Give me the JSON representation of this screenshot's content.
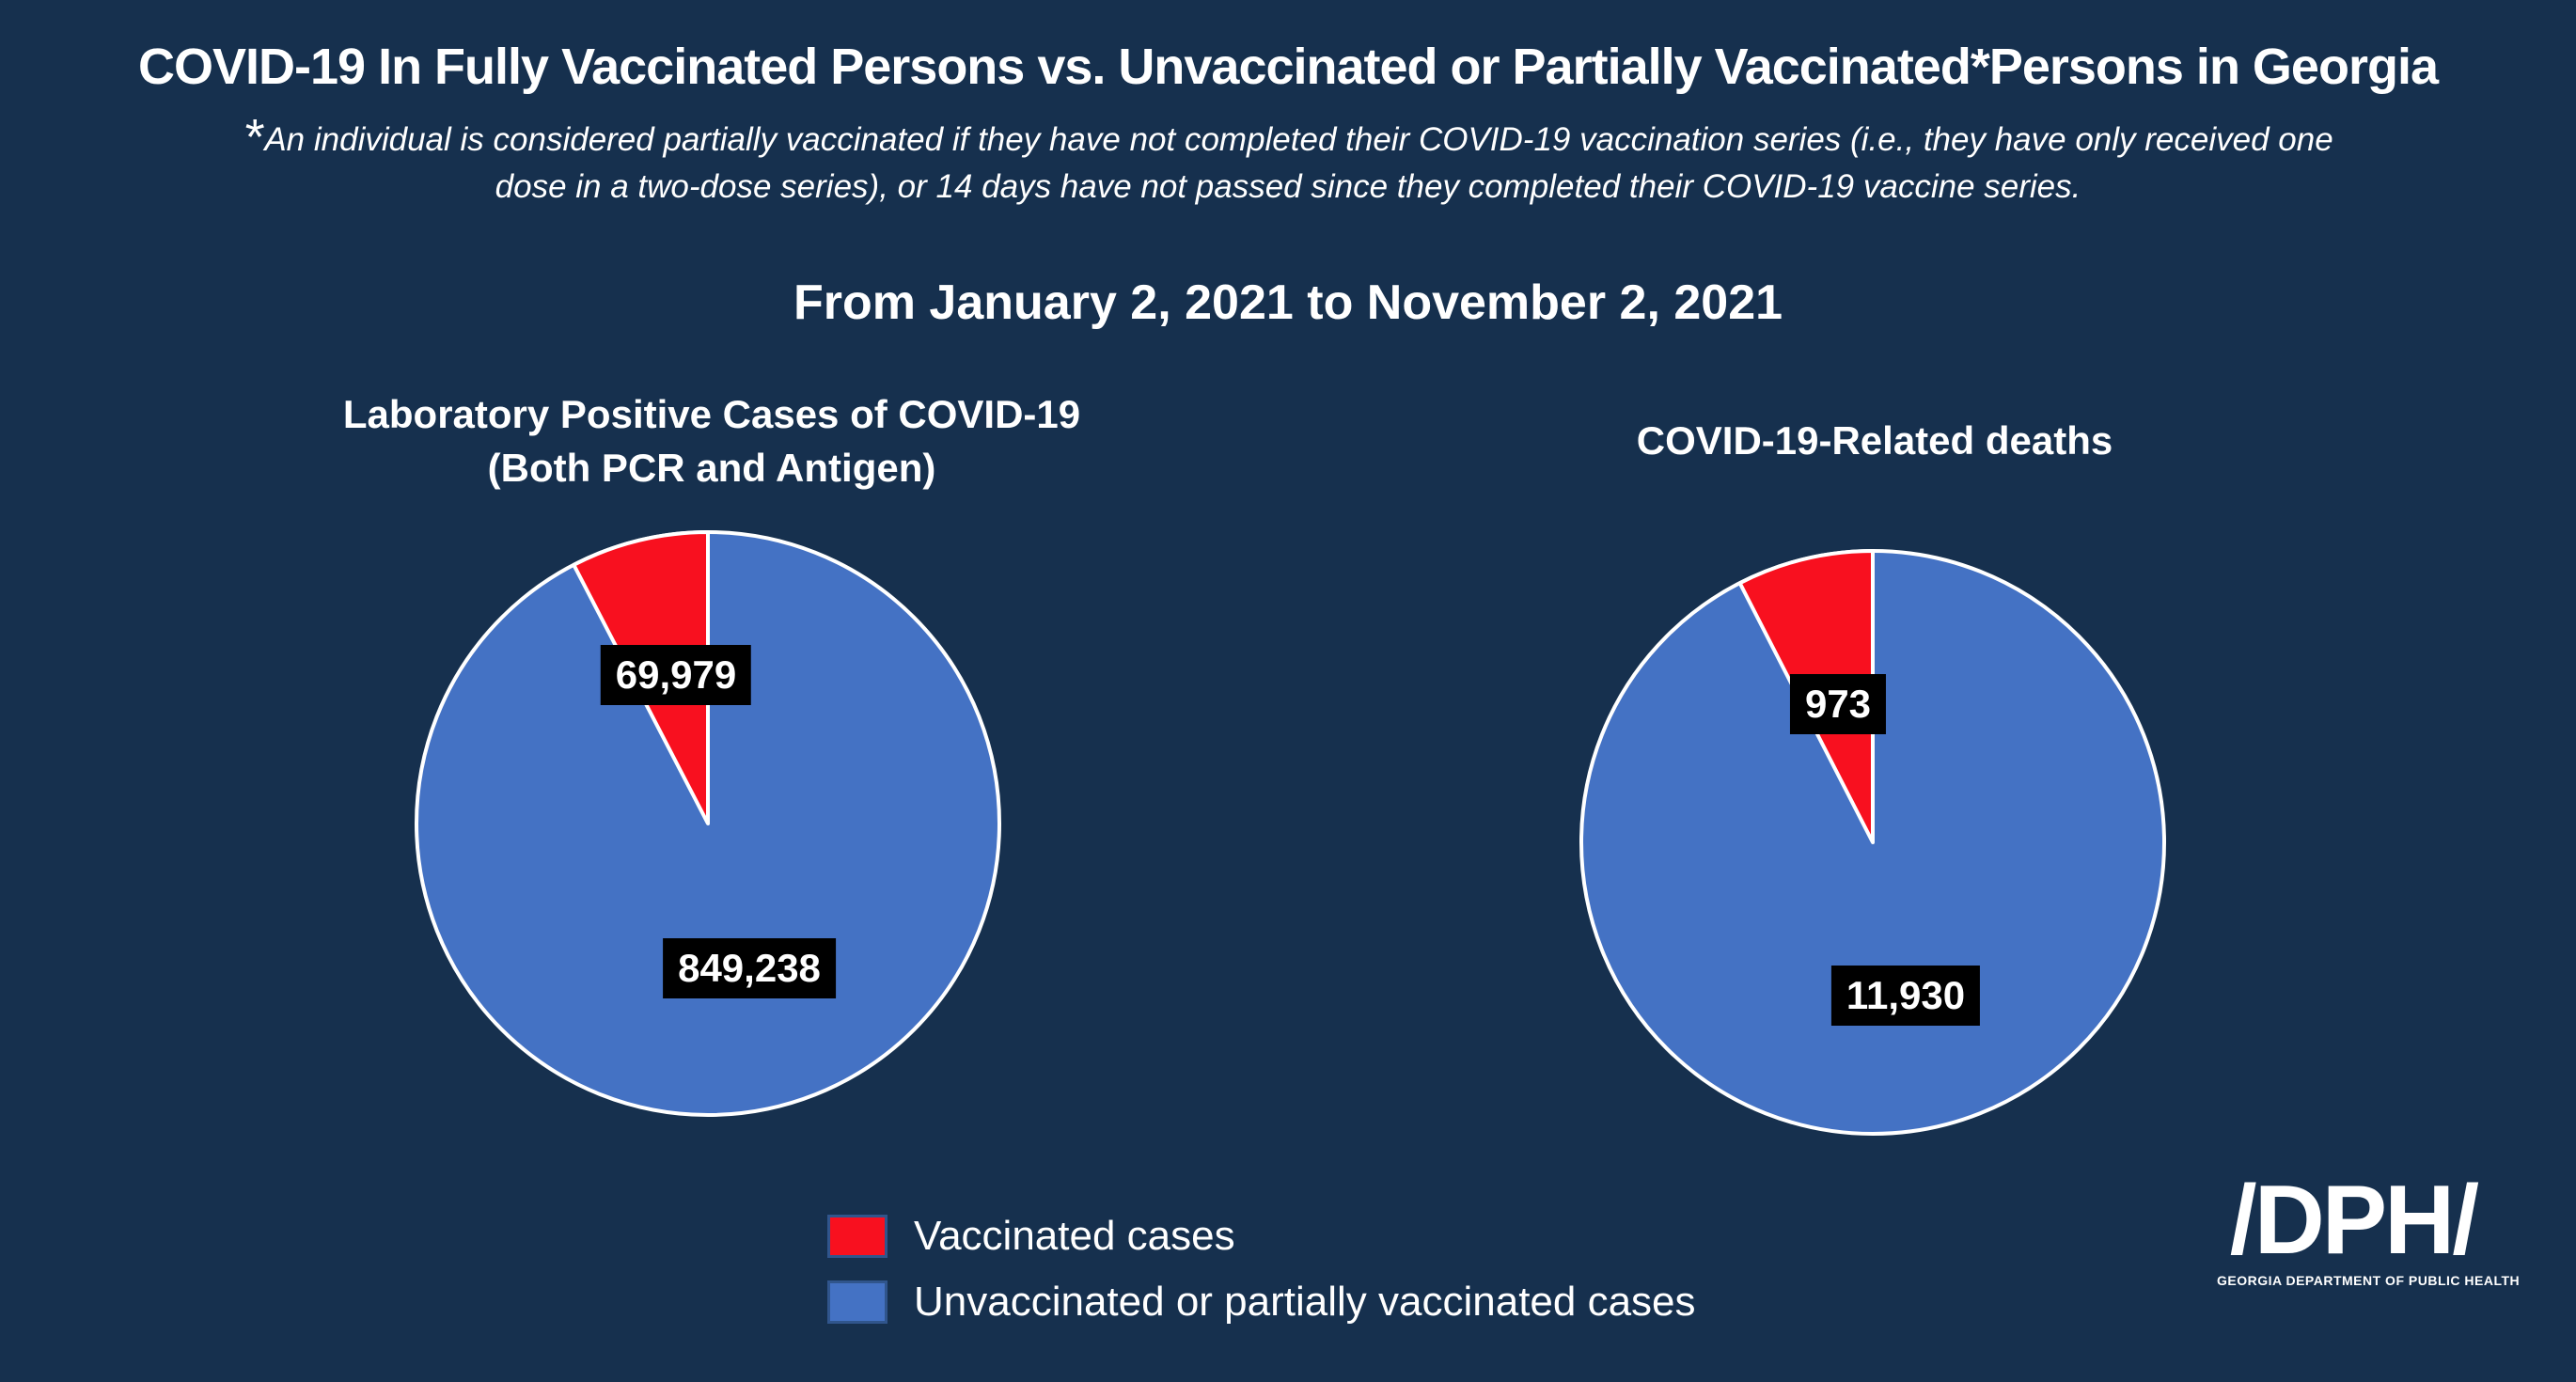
{
  "colors": {
    "background": "#16304e",
    "red": "#f8101f",
    "blue": "#4472c4",
    "label_background": "#000000",
    "text": "#ffffff"
  },
  "header": {
    "title": "COVID-19 In Fully Vaccinated Persons vs. Unvaccinated or Partially Vaccinated*Persons in Georgia",
    "footnote_marker": "*",
    "footnote_line1": "An individual is considered partially vaccinated if they have not completed their COVID-19 vaccination series (i.e., they have only received one",
    "footnote_line2": "dose in a two-dose series), or 14 days have not passed since they completed their COVID-19 vaccine series.",
    "date_range": "From January 2, 2021 to November 2, 2021"
  },
  "chart_data": [
    {
      "type": "pie",
      "title": "Laboratory Positive Cases of COVID-19",
      "subtitle": "(Both PCR and Antigen)",
      "start_angle": "red wedge ends at 12 o'clock, drawn counterclockwise from top",
      "slices": [
        {
          "name": "Vaccinated cases",
          "value": 69979,
          "label": "69,979",
          "color": "#f8101f"
        },
        {
          "name": "Unvaccinated or partially vaccinated cases",
          "value": 849238,
          "label": "849,238",
          "color": "#4472c4"
        }
      ]
    },
    {
      "type": "pie",
      "title": "COVID-19-Related deaths",
      "subtitle": "",
      "start_angle": "red wedge ends at 12 o'clock, drawn counterclockwise from top",
      "slices": [
        {
          "name": "Vaccinated cases",
          "value": 973,
          "label": "973",
          "color": "#f8101f"
        },
        {
          "name": "Unvaccinated or partially vaccinated cases",
          "value": 11930,
          "label": "11,930",
          "color": "#4472c4"
        }
      ]
    }
  ],
  "legend": {
    "items": [
      {
        "label": "Vaccinated cases",
        "color": "#f8101f"
      },
      {
        "label": "Unvaccinated or partially vaccinated cases",
        "color": "#4472c4"
      }
    ]
  },
  "logo": {
    "acronym": "DPH",
    "subtext": "GEORGIA DEPARTMENT OF PUBLIC HEALTH"
  }
}
